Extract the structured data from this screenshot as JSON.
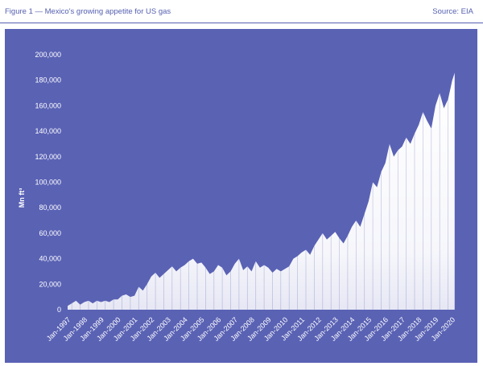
{
  "header": {
    "title": "Figure 1 — Mexico's growing appetite for US gas",
    "source": "Source: EIA"
  },
  "colors": {
    "panel": "#5a62b4",
    "header_text": "#5560b0",
    "area": "#ffffff"
  },
  "chart_data": {
    "type": "area",
    "title": "",
    "xlabel": "",
    "ylabel": "Mn ft³",
    "ylim": [
      0,
      200000
    ],
    "yticks": [
      0,
      20000,
      40000,
      60000,
      80000,
      100000,
      120000,
      140000,
      160000,
      180000,
      200000
    ],
    "ytick_labels": [
      "0",
      "20,000",
      "40,000",
      "60,000",
      "80,000",
      "100,000",
      "120,000",
      "140,000",
      "160,000",
      "180,000",
      "200,000"
    ],
    "xtick_labels": [
      "Jan-1997",
      "Jan-1998",
      "Jan-1999",
      "Jan-2000",
      "Jan-2001",
      "Jan-2002",
      "Jan-2003",
      "Jan-2004",
      "Jan-2005",
      "Jan-2006",
      "Jan-2007",
      "Jan-2008",
      "Jan-2009",
      "Jan-2010",
      "Jan-2011",
      "Jan-2012",
      "Jan-2013",
      "Jan-2014",
      "Jan-2015",
      "Jan-2016",
      "Jan-2017",
      "Jan-2018",
      "Jan-2019",
      "Jan-2020"
    ],
    "grid": false,
    "series": [
      {
        "x": [
          1997.0,
          1997.25,
          1997.5,
          1997.75,
          1998.0,
          1998.25,
          1998.5,
          1998.75,
          1999.0,
          1999.25,
          1999.5,
          1999.75,
          2000.0,
          2000.25,
          2000.5,
          2000.75,
          2001.0,
          2001.25,
          2001.5,
          2001.75,
          2002.0,
          2002.25,
          2002.5,
          2002.75,
          2003.0,
          2003.25,
          2003.5,
          2003.75,
          2004.0,
          2004.25,
          2004.5,
          2004.75,
          2005.0,
          2005.25,
          2005.5,
          2005.75,
          2006.0,
          2006.25,
          2006.5,
          2006.75,
          2007.0,
          2007.25,
          2007.5,
          2007.75,
          2008.0,
          2008.25,
          2008.5,
          2008.75,
          2009.0,
          2009.25,
          2009.5,
          2009.75,
          2010.0,
          2010.25,
          2010.5,
          2010.75,
          2011.0,
          2011.25,
          2011.5,
          2011.75,
          2012.0,
          2012.25,
          2012.5,
          2012.75,
          2013.0,
          2013.25,
          2013.5,
          2013.75,
          2014.0,
          2014.25,
          2014.5,
          2014.75,
          2015.0,
          2015.25,
          2015.5,
          2015.75,
          2016.0,
          2016.25,
          2016.5,
          2016.75,
          2017.0,
          2017.25,
          2017.5,
          2017.75,
          2018.0,
          2018.25,
          2018.5,
          2018.75,
          2019.0,
          2019.25,
          2019.5,
          2019.75,
          2020.0,
          2020.15
        ],
        "values": [
          3000,
          5000,
          7000,
          4000,
          6000,
          7000,
          5000,
          7000,
          6000,
          7000,
          6000,
          8000,
          8000,
          11000,
          12000,
          10000,
          11000,
          18000,
          15000,
          20000,
          26000,
          29000,
          25000,
          28000,
          31000,
          34000,
          30000,
          33000,
          35000,
          38000,
          40000,
          36000,
          37000,
          33000,
          28000,
          30000,
          35000,
          33000,
          27000,
          30000,
          36000,
          40000,
          31000,
          34000,
          30000,
          38000,
          33000,
          35000,
          33000,
          29000,
          32000,
          30000,
          32000,
          34000,
          40000,
          42000,
          45000,
          47000,
          43000,
          50000,
          55000,
          60000,
          55000,
          58000,
          61000,
          56000,
          52000,
          58000,
          65000,
          70000,
          65000,
          75000,
          85000,
          100000,
          96000,
          108000,
          115000,
          130000,
          120000,
          125000,
          128000,
          135000,
          130000,
          138000,
          145000,
          155000,
          148000,
          142000,
          160000,
          170000,
          158000,
          165000,
          180000,
          186000
        ]
      }
    ]
  }
}
